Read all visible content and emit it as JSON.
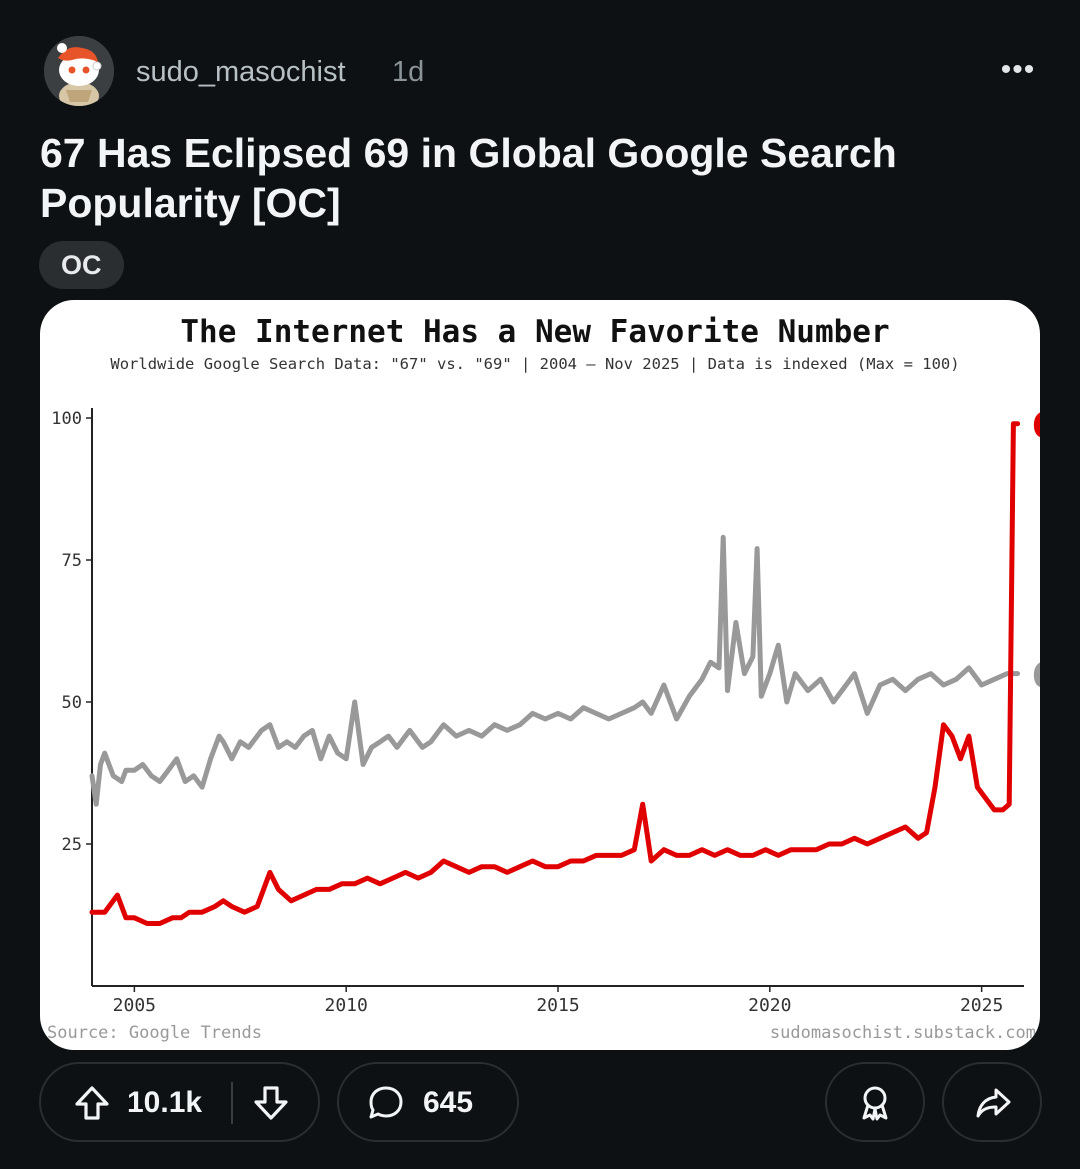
{
  "post": {
    "username": "sudo_masochist",
    "age": "1d",
    "more_label": "•••",
    "title": "67 Has Eclipsed 69 in Global Google Search Popularity [OC]",
    "flair": "OC"
  },
  "chart_data": {
    "type": "line",
    "title": "The Internet Has a New Favorite Number",
    "subtitle": "Worldwide Google Search Data: \"67\" vs. \"69\" | 2004 – Nov 2025 | Data is indexed (Max = 100)",
    "ylim": [
      0,
      100
    ],
    "xlim": [
      2004,
      2026
    ],
    "yticks": [
      25,
      50,
      75,
      100
    ],
    "xticks": [
      2005,
      2010,
      2015,
      2020,
      2025
    ],
    "grid": false,
    "source": "Source: Google Trends",
    "credit": "sudomasochist.substack.com",
    "series": [
      {
        "name": "69",
        "color": "#999999",
        "x": [
          2004.0,
          2004.1,
          2004.2,
          2004.3,
          2004.5,
          2004.7,
          2004.8,
          2005.0,
          2005.2,
          2005.4,
          2005.6,
          2005.8,
          2006.0,
          2006.2,
          2006.4,
          2006.6,
          2006.8,
          2007.0,
          2007.1,
          2007.3,
          2007.5,
          2007.7,
          2008.0,
          2008.2,
          2008.4,
          2008.6,
          2008.8,
          2009.0,
          2009.2,
          2009.4,
          2009.6,
          2009.8,
          2010.0,
          2010.2,
          2010.4,
          2010.6,
          2010.8,
          2011.0,
          2011.2,
          2011.5,
          2011.8,
          2012.0,
          2012.3,
          2012.6,
          2012.9,
          2013.2,
          2013.5,
          2013.8,
          2014.1,
          2014.4,
          2014.7,
          2015.0,
          2015.3,
          2015.6,
          2015.9,
          2016.2,
          2016.5,
          2016.8,
          2017.0,
          2017.2,
          2017.5,
          2017.8,
          2018.1,
          2018.4,
          2018.6,
          2018.8,
          2018.9,
          2019.0,
          2019.2,
          2019.4,
          2019.6,
          2019.7,
          2019.8,
          2020.0,
          2020.2,
          2020.4,
          2020.6,
          2020.9,
          2021.2,
          2021.5,
          2021.8,
          2022.0,
          2022.3,
          2022.6,
          2022.9,
          2023.2,
          2023.5,
          2023.8,
          2024.1,
          2024.4,
          2024.7,
          2025.0,
          2025.3,
          2025.6,
          2025.85
        ],
        "values": [
          37,
          32,
          39,
          41,
          37,
          36,
          38,
          38,
          39,
          37,
          36,
          38,
          40,
          36,
          37,
          35,
          40,
          44,
          43,
          40,
          43,
          42,
          45,
          46,
          42,
          43,
          42,
          44,
          45,
          40,
          44,
          41,
          40,
          50,
          39,
          42,
          43,
          44,
          42,
          45,
          42,
          43,
          46,
          44,
          45,
          44,
          46,
          45,
          46,
          48,
          47,
          48,
          47,
          49,
          48,
          47,
          48,
          49,
          50,
          48,
          53,
          47,
          51,
          54,
          57,
          56,
          79,
          52,
          64,
          55,
          58,
          77,
          51,
          55,
          60,
          50,
          55,
          52,
          54,
          50,
          53,
          55,
          48,
          53,
          54,
          52,
          54,
          55,
          53,
          54,
          56,
          53,
          54,
          55,
          55
        ]
      },
      {
        "name": "67",
        "color": "#e00000",
        "x": [
          2004.0,
          2004.3,
          2004.6,
          2004.8,
          2005.0,
          2005.3,
          2005.6,
          2005.9,
          2006.1,
          2006.3,
          2006.6,
          2006.9,
          2007.1,
          2007.3,
          2007.6,
          2007.9,
          2008.2,
          2008.4,
          2008.7,
          2009.0,
          2009.3,
          2009.6,
          2009.9,
          2010.2,
          2010.5,
          2010.8,
          2011.1,
          2011.4,
          2011.7,
          2012.0,
          2012.3,
          2012.6,
          2012.9,
          2013.2,
          2013.5,
          2013.8,
          2014.1,
          2014.4,
          2014.7,
          2015.0,
          2015.3,
          2015.6,
          2015.9,
          2016.2,
          2016.5,
          2016.8,
          2017.0,
          2017.2,
          2017.5,
          2017.8,
          2018.1,
          2018.4,
          2018.7,
          2019.0,
          2019.3,
          2019.6,
          2019.9,
          2020.2,
          2020.5,
          2020.8,
          2021.1,
          2021.4,
          2021.7,
          2022.0,
          2022.3,
          2022.6,
          2022.9,
          2023.2,
          2023.5,
          2023.7,
          2023.9,
          2024.1,
          2024.3,
          2024.5,
          2024.7,
          2024.9,
          2025.1,
          2025.3,
          2025.5,
          2025.65,
          2025.75,
          2025.85
        ],
        "values": [
          13,
          13,
          16,
          12,
          12,
          11,
          11,
          12,
          12,
          13,
          13,
          14,
          15,
          14,
          13,
          14,
          20,
          17,
          15,
          16,
          17,
          17,
          18,
          18,
          19,
          18,
          19,
          20,
          19,
          20,
          22,
          21,
          20,
          21,
          21,
          20,
          21,
          22,
          21,
          21,
          22,
          22,
          23,
          23,
          23,
          24,
          32,
          22,
          24,
          23,
          23,
          24,
          23,
          24,
          23,
          23,
          24,
          23,
          24,
          24,
          24,
          25,
          25,
          26,
          25,
          26,
          27,
          28,
          26,
          27,
          35,
          46,
          44,
          40,
          44,
          35,
          33,
          31,
          31,
          32,
          99,
          99
        ]
      }
    ]
  },
  "actions": {
    "upvotes": "10.1k",
    "comments": "645"
  },
  "icons": [
    "avatar-icon",
    "upvote-icon",
    "downvote-icon",
    "comment-icon",
    "award-icon",
    "share-icon"
  ]
}
